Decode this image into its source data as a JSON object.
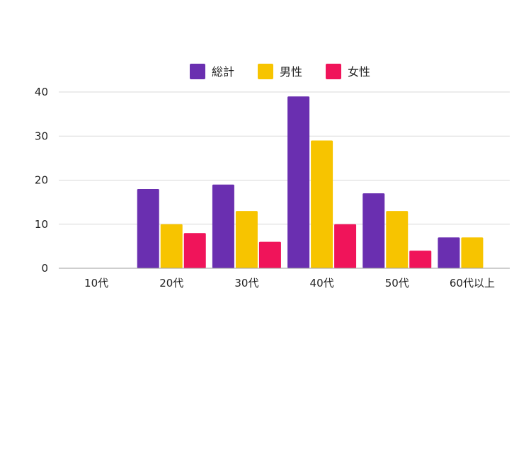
{
  "chart_data": {
    "type": "bar",
    "categories": [
      "10代",
      "20代",
      "30代",
      "40代",
      "50代",
      "60代以上"
    ],
    "series": [
      {
        "name": "総計",
        "color": "#6a2fb0",
        "values": [
          0,
          18,
          19,
          39,
          17,
          7
        ]
      },
      {
        "name": "男性",
        "color": "#f7c400",
        "values": [
          0,
          10,
          13,
          29,
          13,
          7
        ]
      },
      {
        "name": "女性",
        "color": "#f0145a",
        "values": [
          0,
          8,
          6,
          10,
          4,
          0
        ]
      }
    ],
    "y_ticks": [
      "0",
      "10",
      "20",
      "30",
      "40"
    ],
    "ylim": [
      0,
      40
    ],
    "grid": true,
    "legend_position": "top-center"
  }
}
